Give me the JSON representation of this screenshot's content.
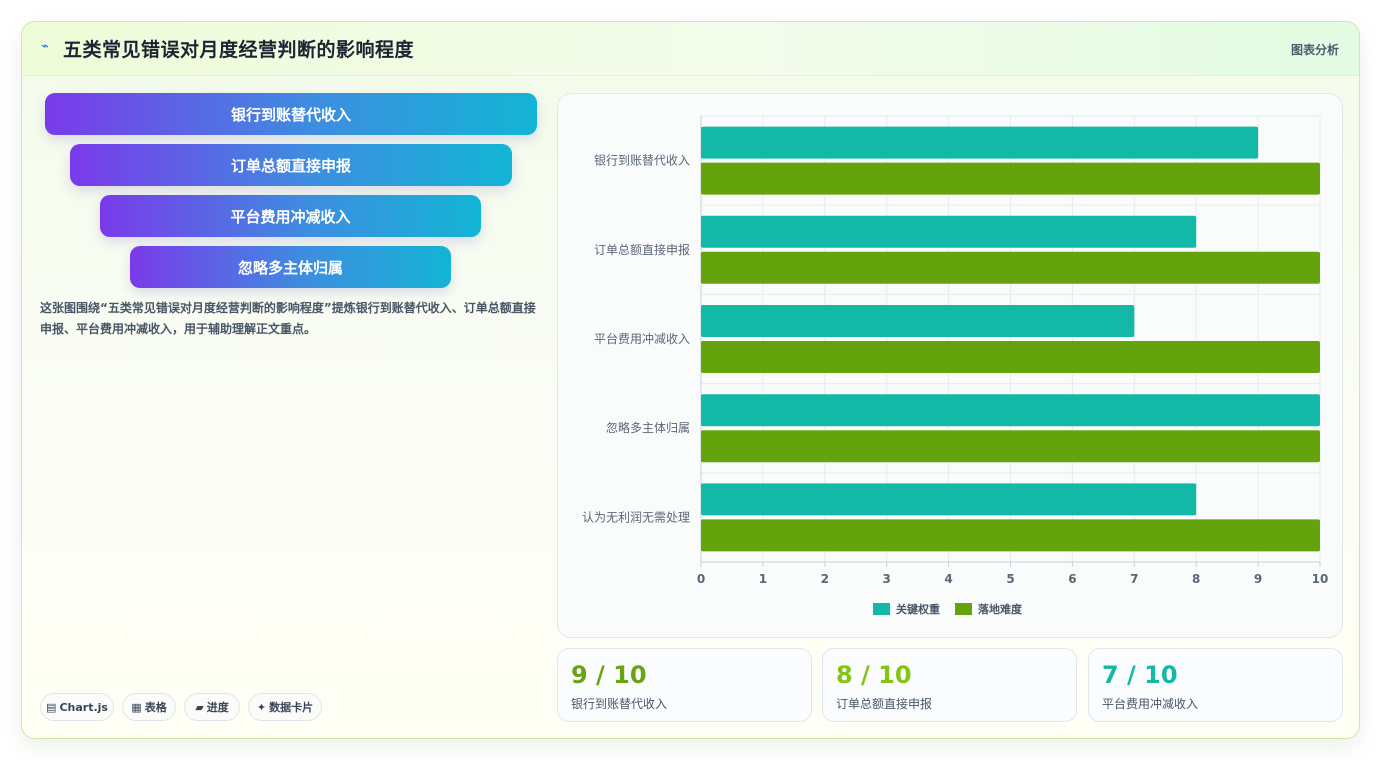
{
  "header": {
    "logo_icon": "⌁",
    "title": "五类常见错误对月度经营判断的影响程度",
    "tag": "图表分析"
  },
  "funnel": [
    {
      "label": "银行到账替代收入"
    },
    {
      "label": "订单总额直接申报"
    },
    {
      "label": "平台费用冲减收入"
    },
    {
      "label": "忽略多主体归属"
    }
  ],
  "description": "这张图围绕“五类常见错误对月度经营判断的影响程度”提炼银行到账替代收入、订单总额直接申报、平台费用冲减收入，用于辅助理解正文重点。",
  "pills": [
    {
      "icon": "▤",
      "label": "Chart.js"
    },
    {
      "icon": "▦",
      "label": "表格"
    },
    {
      "icon": "▰",
      "label": "进度"
    },
    {
      "icon": "✦",
      "label": "数据卡片"
    }
  ],
  "stats": [
    {
      "value": "9 / 10",
      "label": "银行到账替代收入",
      "color": "#6aa312"
    },
    {
      "value": "8 / 10",
      "label": "订单总额直接申报",
      "color": "#84c416"
    },
    {
      "value": "7 / 10",
      "label": "平台费用冲减收入",
      "color": "#14b8a6"
    }
  ],
  "chart_data": {
    "type": "bar",
    "orientation": "horizontal",
    "categories": [
      "银行到账替代收入",
      "订单总额直接申报",
      "平台费用冲减收入",
      "忽略多主体归属",
      "认为无利润无需处理"
    ],
    "series": [
      {
        "name": "关键权重",
        "values": [
          9,
          8,
          7,
          10,
          8
        ],
        "color": "#14b8a6"
      },
      {
        "name": "落地难度",
        "values": [
          10,
          10,
          10,
          10,
          10
        ],
        "color": "#65a30d"
      }
    ],
    "xlim": [
      0,
      10
    ],
    "xticks": [
      "0",
      "1",
      "2",
      "3",
      "4",
      "5",
      "6",
      "7",
      "8",
      "9",
      "10"
    ],
    "grid": true,
    "legend": "bottom"
  }
}
